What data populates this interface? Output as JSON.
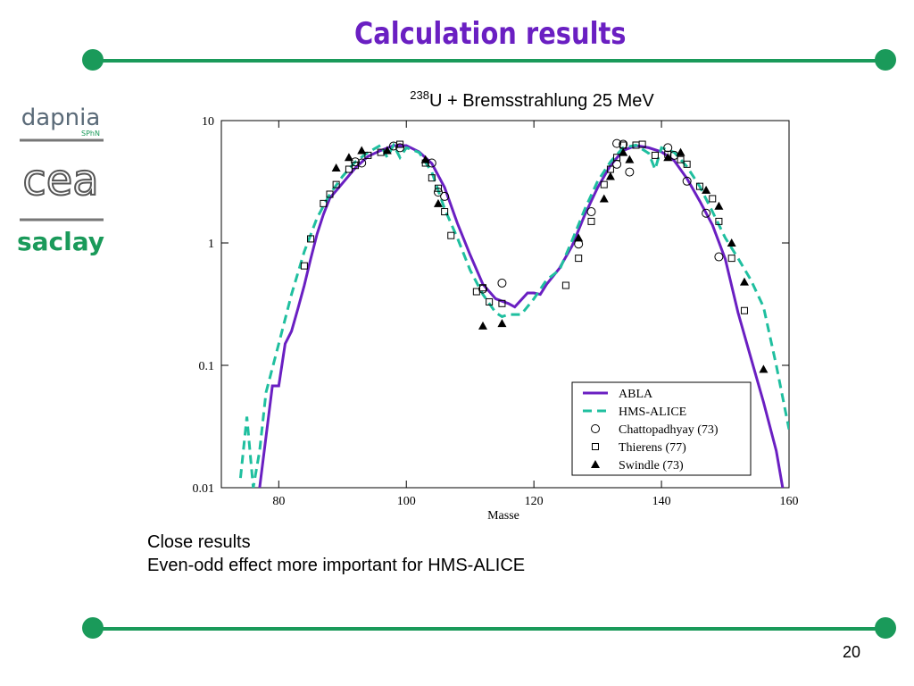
{
  "slide_title": "Calculation results",
  "logos": {
    "dapnia": "dapnia",
    "sphn": "SPhN",
    "cea": "cea",
    "saclay": "saclay"
  },
  "bullets": [
    "Close results",
    "Even-odd effect more important for HMS-ALICE"
  ],
  "page_number": "20",
  "chart_data": {
    "type": "line",
    "title_superscript": "238",
    "title": "U + Bremsstrahlung 25 MeV",
    "x_label": "Masse",
    "xlim": [
      71,
      160
    ],
    "xticks": [
      80,
      100,
      120,
      140,
      160
    ],
    "ylim": [
      0.01,
      10
    ],
    "yticks": [
      0.01,
      0.1,
      1,
      10
    ],
    "log_y": true,
    "legend_position": "lower right",
    "series": [
      {
        "name": "ABLA",
        "color": "#6a1fc2",
        "kind": "line",
        "dash": false,
        "x": [
          77,
          79,
          80,
          81,
          82,
          83,
          84,
          85,
          86,
          87,
          88,
          90,
          92,
          94,
          96,
          98,
          100,
          102,
          104,
          106,
          108,
          110,
          112,
          114,
          116,
          117,
          119,
          120,
          121,
          122,
          124,
          126,
          128,
          130,
          132,
          134,
          136,
          138,
          140,
          142,
          144,
          146,
          148,
          150,
          152,
          154,
          156,
          158,
          159
        ],
        "values": [
          0.01,
          0.068,
          0.068,
          0.15,
          0.19,
          0.29,
          0.45,
          0.74,
          1.18,
          1.71,
          2.32,
          3.08,
          4.1,
          5.1,
          5.7,
          6.25,
          6.25,
          5.55,
          4.46,
          2.84,
          1.45,
          0.8,
          0.46,
          0.35,
          0.32,
          0.3,
          0.39,
          0.39,
          0.38,
          0.46,
          0.62,
          0.95,
          1.71,
          2.84,
          4.3,
          5.7,
          6.25,
          6.0,
          5.55,
          4.7,
          3.36,
          2.2,
          1.4,
          0.74,
          0.27,
          0.116,
          0.05,
          0.02,
          0.01
        ]
      },
      {
        "name": "HMS-ALICE",
        "color": "#1fbf9f",
        "kind": "line",
        "dash": true,
        "x": [
          74,
          75,
          76,
          77,
          78,
          80,
          82,
          84,
          86,
          88,
          90,
          92,
          94,
          96,
          97,
          98,
          99,
          100,
          102,
          104,
          106,
          108,
          110,
          112,
          114,
          115,
          116,
          118,
          120,
          122,
          124,
          126,
          128,
          130,
          132,
          134,
          136,
          138,
          139,
          140,
          142,
          144,
          146,
          148,
          150,
          152,
          154,
          156,
          158,
          160
        ],
        "values": [
          0.012,
          0.038,
          0.01,
          0.02,
          0.06,
          0.15,
          0.38,
          0.85,
          1.6,
          2.5,
          3.5,
          4.6,
          5.5,
          6.3,
          5.0,
          6.3,
          5.0,
          6.0,
          5.5,
          3.8,
          1.9,
          1.1,
          0.6,
          0.38,
          0.27,
          0.25,
          0.26,
          0.26,
          0.35,
          0.5,
          0.6,
          1.05,
          1.9,
          3.2,
          4.6,
          6.0,
          6.3,
          5.4,
          4.0,
          6.0,
          5.5,
          4.2,
          2.9,
          1.8,
          1.1,
          0.75,
          0.5,
          0.3,
          0.1,
          0.03
        ]
      },
      {
        "name": "Chattopadhyay (73)",
        "color": "#000000",
        "kind": "scatter",
        "marker": "circle",
        "x": [
          92,
          93,
          98,
          99,
          104,
          105,
          106,
          112,
          115,
          127,
          129,
          133,
          133,
          134,
          135,
          141,
          142,
          144,
          147,
          149
        ],
        "values": [
          4.6,
          4.5,
          6.2,
          6.0,
          4.5,
          2.6,
          2.4,
          0.42,
          0.47,
          0.98,
          1.8,
          4.4,
          6.5,
          6.4,
          3.8,
          6.0,
          5.2,
          3.2,
          1.75,
          0.77
        ]
      },
      {
        "name": "Thierens (77)",
        "color": "#000000",
        "kind": "scatter",
        "marker": "square",
        "x": [
          84,
          85,
          87,
          88,
          89,
          91,
          92,
          94,
          96,
          99,
          103,
          104,
          105,
          106,
          107,
          111,
          112,
          113,
          115,
          125,
          127,
          129,
          131,
          132,
          133,
          134,
          136,
          137,
          139,
          141,
          143,
          144,
          146,
          148,
          149,
          151,
          153
        ],
        "values": [
          0.65,
          1.08,
          2.1,
          2.5,
          3.0,
          4.0,
          4.3,
          5.2,
          5.5,
          6.4,
          4.5,
          3.4,
          2.8,
          1.8,
          1.15,
          0.4,
          0.43,
          0.33,
          0.32,
          0.45,
          0.75,
          1.5,
          3.0,
          4.0,
          5.0,
          6.3,
          6.3,
          6.4,
          5.2,
          5.3,
          4.8,
          4.4,
          2.9,
          2.3,
          1.5,
          0.75,
          0.28
        ]
      },
      {
        "name": "Swindle (73)",
        "color": "#000000",
        "kind": "scatter",
        "marker": "triangle",
        "x": [
          89,
          91,
          93,
          97,
          103,
          105,
          112,
          115,
          127,
          131,
          132,
          134,
          135,
          141,
          143,
          147,
          149,
          151,
          153,
          156
        ],
        "values": [
          4.1,
          5.0,
          5.7,
          5.7,
          4.8,
          2.1,
          0.21,
          0.22,
          1.1,
          2.3,
          3.5,
          5.5,
          4.8,
          5.0,
          5.5,
          2.7,
          2.0,
          1.0,
          0.48,
          0.093
        ]
      }
    ]
  }
}
